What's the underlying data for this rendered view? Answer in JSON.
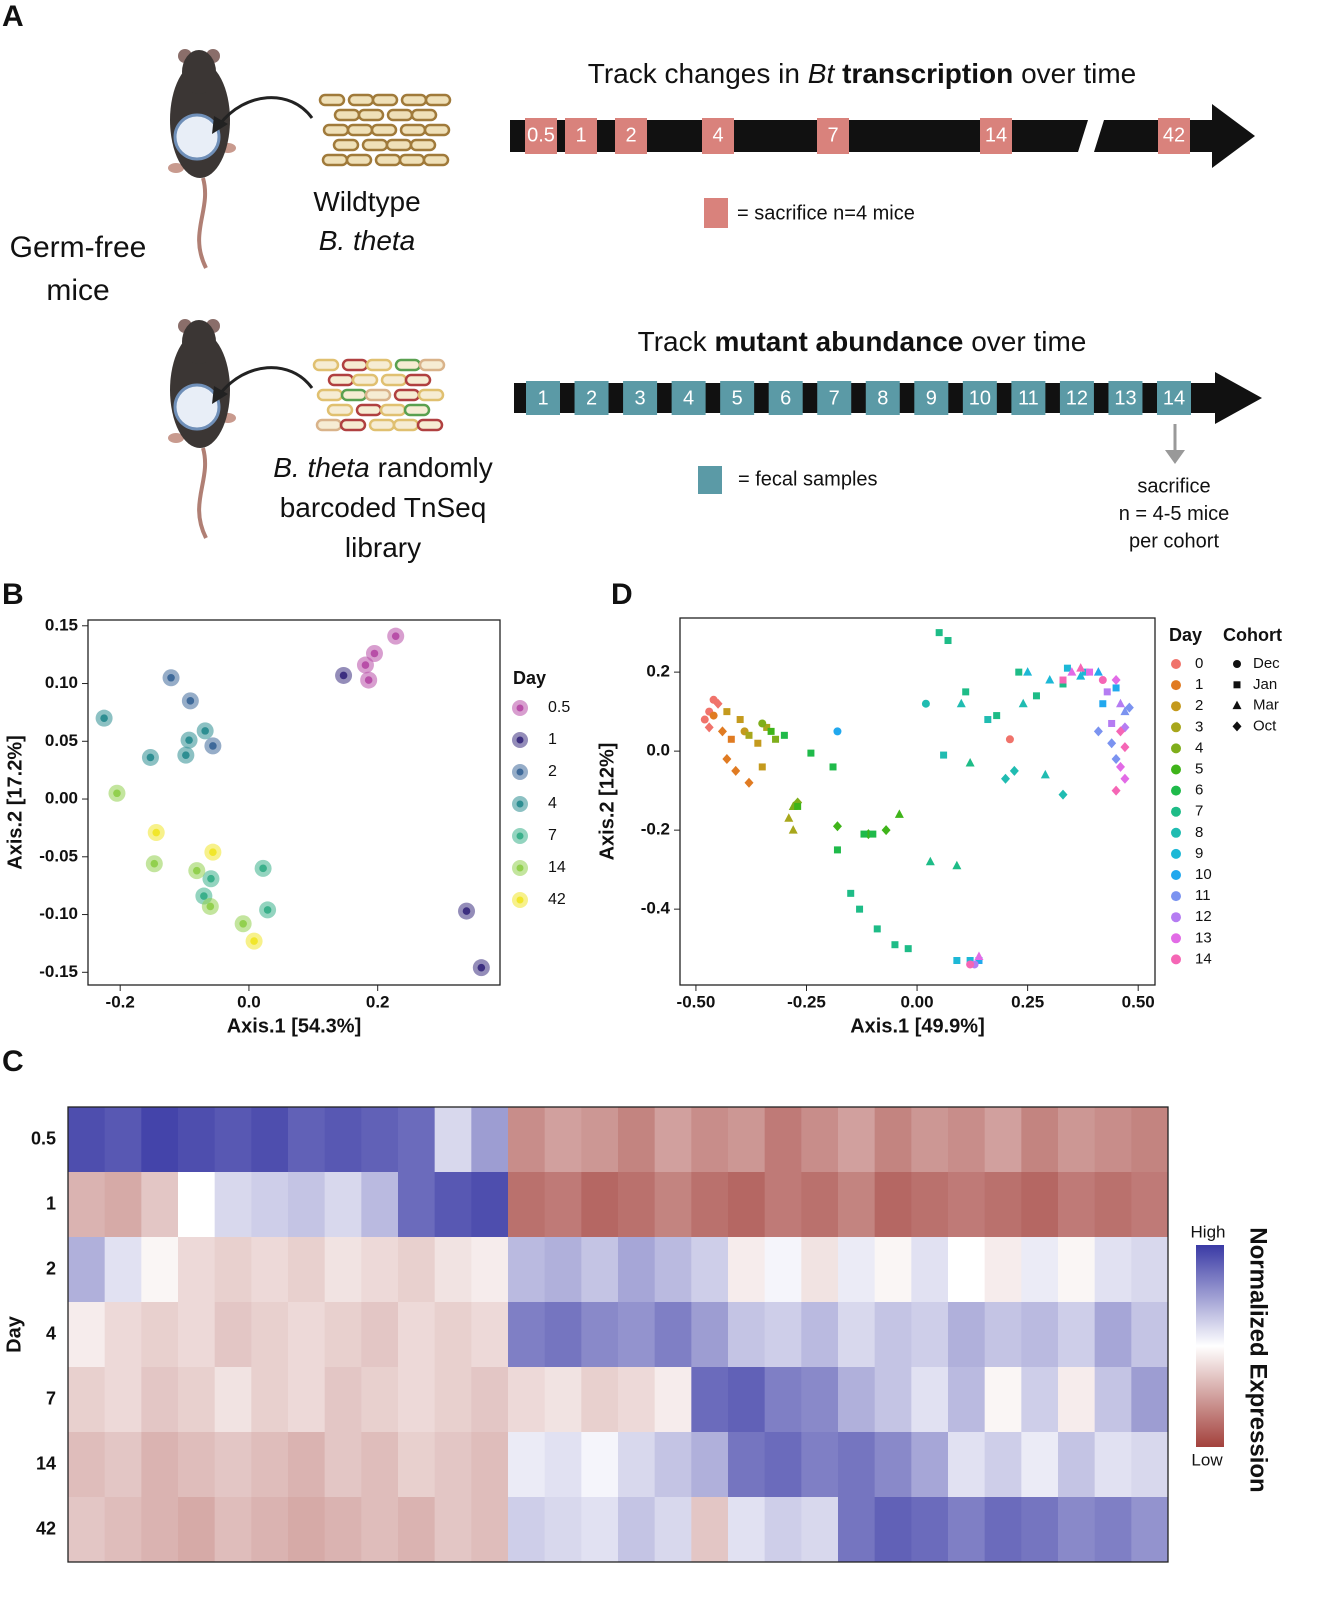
{
  "diagram": {
    "panel_label": "A",
    "left_label": [
      "Germ-free",
      "mice"
    ],
    "mouse1_label": [
      [
        {
          "text": "Wildtype"
        }
      ],
      [
        {
          "text": "B. theta",
          "style": "italic"
        }
      ]
    ],
    "mouse2_label": [
      [
        {
          "text": "B. theta",
          "style": "italic"
        },
        {
          "text": "randomly"
        }
      ],
      [
        {
          "text": "barcoded TnSeq"
        }
      ],
      [
        {
          "text": "library"
        }
      ]
    ],
    "timeline1": {
      "title_parts": [
        {
          "text": "Track changes in"
        },
        {
          "text": "Bt",
          "style": "italic"
        },
        {
          "text": "transcription",
          "style": "bold"
        },
        {
          "text": "over time"
        }
      ],
      "days": [
        0.5,
        1,
        2,
        4,
        7,
        14,
        42
      ],
      "color": "#d9827c",
      "legend": "= sacrifice n=4 mice"
    },
    "timeline2": {
      "title_parts": [
        {
          "text": "Track"
        },
        {
          "text": "mutant abundance",
          "style": "bold"
        },
        {
          "text": "over time"
        }
      ],
      "days": [
        1,
        2,
        3,
        4,
        5,
        6,
        7,
        8,
        9,
        10,
        11,
        12,
        13,
        14
      ],
      "color": "#5b9aa6",
      "legend": "= fecal samples",
      "note": [
        "sacrifice",
        "n = 4-5 mice",
        "per cohort"
      ]
    }
  },
  "chart_data": [
    {
      "type": "scatter",
      "panel_label": "B",
      "xlabel": "Axis.1 [54.3%]",
      "ylabel": "Axis.2 [17.2%]",
      "xlim": [
        -0.25,
        0.39
      ],
      "ylim": [
        -0.161,
        0.155
      ],
      "xticks": [
        -0.2,
        {
          "value": 0,
          "label": "0.0"
        },
        0.2
      ],
      "yticks": [
        -0.15,
        {
          "value": -0.1,
          "label": "-0.10"
        },
        -0.05,
        {
          "value": 0,
          "label": "0.00"
        },
        0.05,
        {
          "value": 0.1,
          "label": "0.10"
        },
        0.15
      ],
      "marker": "ring",
      "legend_title": "Day",
      "series": [
        {
          "name": "0.5",
          "color": "#b84fa8",
          "x": [
            0.228,
            0.195,
            0.181,
            0.186
          ],
          "y": [
            0.141,
            0.126,
            0.116,
            0.103
          ]
        },
        {
          "name": "1",
          "color": "#3d2f80",
          "x": [
            0.147,
            0.338,
            0.361
          ],
          "y": [
            0.107,
            -0.097,
            -0.146
          ]
        },
        {
          "name": "2",
          "color": "#3f6a9a",
          "x": [
            -0.121,
            -0.091,
            -0.056
          ],
          "y": [
            0.105,
            0.085,
            0.046
          ]
        },
        {
          "name": "4",
          "color": "#2e8e92",
          "x": [
            -0.225,
            -0.153,
            -0.093,
            -0.098,
            -0.068
          ],
          "y": [
            0.07,
            0.036,
            0.051,
            0.038,
            0.059
          ]
        },
        {
          "name": "7",
          "color": "#3bb08b",
          "x": [
            0.022,
            0.029,
            -0.059,
            -0.07
          ],
          "y": [
            -0.06,
            -0.096,
            -0.069,
            -0.084
          ]
        },
        {
          "name": "14",
          "color": "#92d04f",
          "x": [
            -0.205,
            -0.147,
            -0.081,
            -0.06,
            -0.009
          ],
          "y": [
            0.005,
            -0.056,
            -0.062,
            -0.093,
            -0.108
          ]
        },
        {
          "name": "42",
          "color": "#f1e62b",
          "x": [
            -0.144,
            -0.056,
            0.008
          ],
          "y": [
            -0.029,
            -0.046,
            -0.123
          ]
        }
      ]
    },
    {
      "type": "scatter",
      "panel_label": "D",
      "xlabel": "Axis.1 [49.9%]",
      "ylabel": "Axis.2 [12%]",
      "xlim": [
        -0.536,
        0.538
      ],
      "ylim": [
        -0.592,
        0.337
      ],
      "xticks": [
        {
          "value": -0.5,
          "label": "-0.50"
        },
        -0.25,
        {
          "value": 0,
          "label": "0.00"
        },
        0.25,
        {
          "value": 0.5,
          "label": "0.50"
        }
      ],
      "yticks": [
        -0.4,
        -0.2,
        {
          "value": 0,
          "label": "0.0"
        },
        0.2
      ],
      "marker": "cohort",
      "legend_title": "Day",
      "cohort_title": "Cohort",
      "cohorts": [
        {
          "name": "Dec",
          "marker": "circle"
        },
        {
          "name": "Jan",
          "marker": "square"
        },
        {
          "name": "Mar",
          "marker": "triangle"
        },
        {
          "name": "Oct",
          "marker": "diamond"
        }
      ],
      "series": [
        {
          "name": "0",
          "color": "#f0736b",
          "x": [
            -0.47,
            -0.46,
            -0.48,
            -0.45,
            -0.47,
            0.21
          ],
          "y": [
            0.1,
            0.13,
            0.08,
            0.12,
            0.06,
            0.03
          ],
          "cohort": [
            0,
            0,
            0,
            3,
            3,
            0
          ]
        },
        {
          "name": "1",
          "color": "#e07b22",
          "x": [
            -0.46,
            -0.44,
            -0.43,
            -0.41,
            -0.38,
            -0.42
          ],
          "y": [
            0.09,
            0.05,
            -0.02,
            -0.05,
            -0.08,
            0.03
          ],
          "cohort": [
            0,
            3,
            3,
            3,
            3,
            1
          ]
        },
        {
          "name": "2",
          "color": "#c49a1d",
          "x": [
            -0.43,
            -0.4,
            -0.36,
            -0.35,
            -0.39
          ],
          "y": [
            0.1,
            0.08,
            0.02,
            -0.04,
            0.05
          ],
          "cohort": [
            1,
            1,
            1,
            1,
            0
          ]
        },
        {
          "name": "3",
          "color": "#a8a71c",
          "x": [
            -0.38,
            -0.34,
            -0.29,
            -0.28
          ],
          "y": [
            0.04,
            0.06,
            -0.17,
            -0.2
          ],
          "cohort": [
            1,
            1,
            2,
            2
          ]
        },
        {
          "name": "4",
          "color": "#7fae1b",
          "x": [
            -0.28,
            -0.27,
            -0.35,
            -0.32
          ],
          "y": [
            -0.14,
            -0.13,
            0.07,
            0.03
          ],
          "cohort": [
            2,
            3,
            0,
            1
          ]
        },
        {
          "name": "5",
          "color": "#3fb41a",
          "x": [
            -0.27,
            -0.33,
            -0.18,
            -0.11,
            -0.07,
            -0.04
          ],
          "y": [
            -0.14,
            0.05,
            -0.19,
            -0.21,
            -0.2,
            -0.16
          ],
          "cohort": [
            1,
            1,
            3,
            3,
            3,
            2
          ]
        },
        {
          "name": "6",
          "color": "#1fba4a",
          "x": [
            -0.3,
            -0.24,
            -0.19,
            -0.18,
            -0.12,
            -0.1
          ],
          "y": [
            0.04,
            -0.005,
            -0.04,
            -0.25,
            -0.21,
            -0.21
          ],
          "cohort": [
            1,
            1,
            1,
            1,
            1,
            1
          ]
        },
        {
          "name": "7",
          "color": "#1ebc87",
          "x": [
            -0.15,
            -0.13,
            -0.09,
            -0.05,
            -0.02,
            0.05,
            0.07,
            0.11,
            0.12,
            0.18,
            0.23,
            0.27,
            0.33,
            0.03,
            0.09
          ],
          "y": [
            -0.36,
            -0.4,
            -0.45,
            -0.49,
            -0.5,
            0.3,
            0.28,
            0.15,
            -0.03,
            0.09,
            0.2,
            0.14,
            0.17,
            -0.28,
            -0.29
          ],
          "cohort": [
            1,
            1,
            1,
            1,
            1,
            1,
            1,
            1,
            2,
            1,
            1,
            1,
            1,
            2,
            2
          ]
        },
        {
          "name": "8",
          "color": "#20bcb1",
          "x": [
            0.06,
            0.1,
            0.16,
            0.2,
            0.22,
            0.24,
            0.29,
            0.33,
            0.02
          ],
          "y": [
            -0.01,
            0.12,
            0.08,
            -0.07,
            -0.05,
            0.12,
            -0.06,
            -0.11,
            0.12
          ],
          "cohort": [
            1,
            2,
            1,
            3,
            3,
            2,
            2,
            3,
            0
          ]
        },
        {
          "name": "9",
          "color": "#1db8d6",
          "x": [
            0.25,
            0.3,
            0.34,
            0.37,
            0.38,
            0.09,
            0.12
          ],
          "y": [
            0.2,
            0.18,
            0.21,
            0.19,
            0.2,
            -0.53,
            -0.53
          ],
          "cohort": [
            2,
            2,
            1,
            2,
            1,
            1,
            1
          ]
        },
        {
          "name": "10",
          "color": "#21a8ee",
          "x": [
            -0.18,
            0.14,
            0.41,
            0.42,
            0.45
          ],
          "y": [
            0.05,
            -0.53,
            0.2,
            0.12,
            0.16
          ],
          "cohort": [
            0,
            1,
            2,
            1,
            1
          ]
        },
        {
          "name": "11",
          "color": "#7b93f0",
          "x": [
            0.41,
            0.44,
            0.47,
            0.45,
            0.48
          ],
          "y": [
            0.05,
            0.02,
            0.1,
            -0.02,
            0.11
          ],
          "cohort": [
            3,
            3,
            2,
            3,
            3
          ]
        },
        {
          "name": "12",
          "color": "#b57cf2",
          "x": [
            0.43,
            0.44,
            0.46,
            0.13,
            0.47
          ],
          "y": [
            0.15,
            0.07,
            0.12,
            -0.54,
            0.06
          ],
          "cohort": [
            1,
            1,
            2,
            0,
            3
          ]
        },
        {
          "name": "13",
          "color": "#e26be6",
          "x": [
            0.35,
            0.39,
            0.45,
            0.46,
            0.47,
            0.14
          ],
          "y": [
            0.2,
            0.2,
            0.18,
            -0.04,
            -0.07,
            -0.52
          ],
          "cohort": [
            2,
            1,
            3,
            3,
            3,
            2
          ]
        },
        {
          "name": "14",
          "color": "#f566b5",
          "x": [
            0.33,
            0.37,
            0.42,
            0.46,
            0.47,
            0.45,
            0.12
          ],
          "y": [
            0.18,
            0.21,
            0.18,
            0.05,
            0.01,
            -0.1,
            -0.54
          ],
          "cohort": [
            1,
            2,
            0,
            3,
            3,
            3,
            0
          ]
        }
      ]
    },
    {
      "type": "heatmap",
      "panel_label": "C",
      "ylabel": "Day",
      "categories": [
        "0.5",
        "1",
        "2",
        "4",
        "7",
        "14",
        "42"
      ],
      "values": [
        [
          1.8,
          1.7,
          1.9,
          1.8,
          1.7,
          1.8,
          1.6,
          1.7,
          1.6,
          1.5,
          0.4,
          1.0,
          -1.2,
          -1.0,
          -1.1,
          -1.3,
          -1.0,
          -1.2,
          -1.1,
          -1.4,
          -1.2,
          -1.0,
          -1.3,
          -1.1,
          -1.2,
          -1.0,
          -1.3,
          -1.1,
          -1.2,
          -1.3
        ],
        [
          -0.8,
          -0.9,
          -0.6,
          0.0,
          0.4,
          0.5,
          0.6,
          0.4,
          0.7,
          1.5,
          1.7,
          1.8,
          -1.5,
          -1.4,
          -1.6,
          -1.5,
          -1.3,
          -1.5,
          -1.6,
          -1.4,
          -1.5,
          -1.3,
          -1.6,
          -1.5,
          -1.4,
          -1.5,
          -1.6,
          -1.4,
          -1.5,
          -1.4
        ],
        [
          0.8,
          0.3,
          -0.1,
          -0.4,
          -0.5,
          -0.4,
          -0.5,
          -0.3,
          -0.4,
          -0.5,
          -0.3,
          -0.2,
          0.7,
          0.8,
          0.6,
          0.9,
          0.7,
          0.5,
          -0.2,
          0.1,
          -0.3,
          0.2,
          -0.1,
          0.3,
          0.0,
          -0.2,
          0.2,
          -0.1,
          0.3,
          0.4
        ],
        [
          -0.2,
          -0.4,
          -0.5,
          -0.4,
          -0.6,
          -0.5,
          -0.4,
          -0.5,
          -0.6,
          -0.4,
          -0.5,
          -0.4,
          1.3,
          1.4,
          1.2,
          1.1,
          1.3,
          1.0,
          0.6,
          0.5,
          0.7,
          0.4,
          0.6,
          0.5,
          0.8,
          0.6,
          0.7,
          0.5,
          0.9,
          0.6
        ],
        [
          -0.5,
          -0.4,
          -0.6,
          -0.5,
          -0.3,
          -0.5,
          -0.4,
          -0.6,
          -0.5,
          -0.4,
          -0.5,
          -0.6,
          -0.4,
          -0.3,
          -0.5,
          -0.4,
          -0.2,
          1.5,
          1.6,
          1.3,
          1.2,
          0.8,
          0.6,
          0.3,
          0.7,
          -0.1,
          0.5,
          -0.2,
          0.6,
          1.0
        ],
        [
          -0.7,
          -0.6,
          -0.8,
          -0.7,
          -0.6,
          -0.7,
          -0.8,
          -0.6,
          -0.7,
          -0.5,
          -0.6,
          -0.7,
          0.2,
          0.3,
          0.1,
          0.4,
          0.6,
          0.8,
          1.4,
          1.5,
          1.3,
          1.4,
          1.2,
          0.9,
          0.3,
          0.5,
          0.2,
          0.6,
          0.3,
          0.4
        ],
        [
          -0.6,
          -0.7,
          -0.8,
          -0.9,
          -0.7,
          -0.8,
          -0.9,
          -0.8,
          -0.7,
          -0.8,
          -0.6,
          -0.7,
          0.5,
          0.4,
          0.3,
          0.6,
          0.4,
          -0.6,
          0.3,
          0.5,
          0.4,
          1.4,
          1.6,
          1.5,
          1.3,
          1.5,
          1.4,
          1.2,
          1.3,
          1.1
        ]
      ],
      "clim": [
        -2,
        2
      ],
      "colors": {
        "low": "#a3413c",
        "mid": "#ffffff",
        "high": "#3a3aa5"
      },
      "colorbar_high": "High",
      "colorbar_low": "Low",
      "colorbar_label": "Normalized Expression"
    }
  ]
}
